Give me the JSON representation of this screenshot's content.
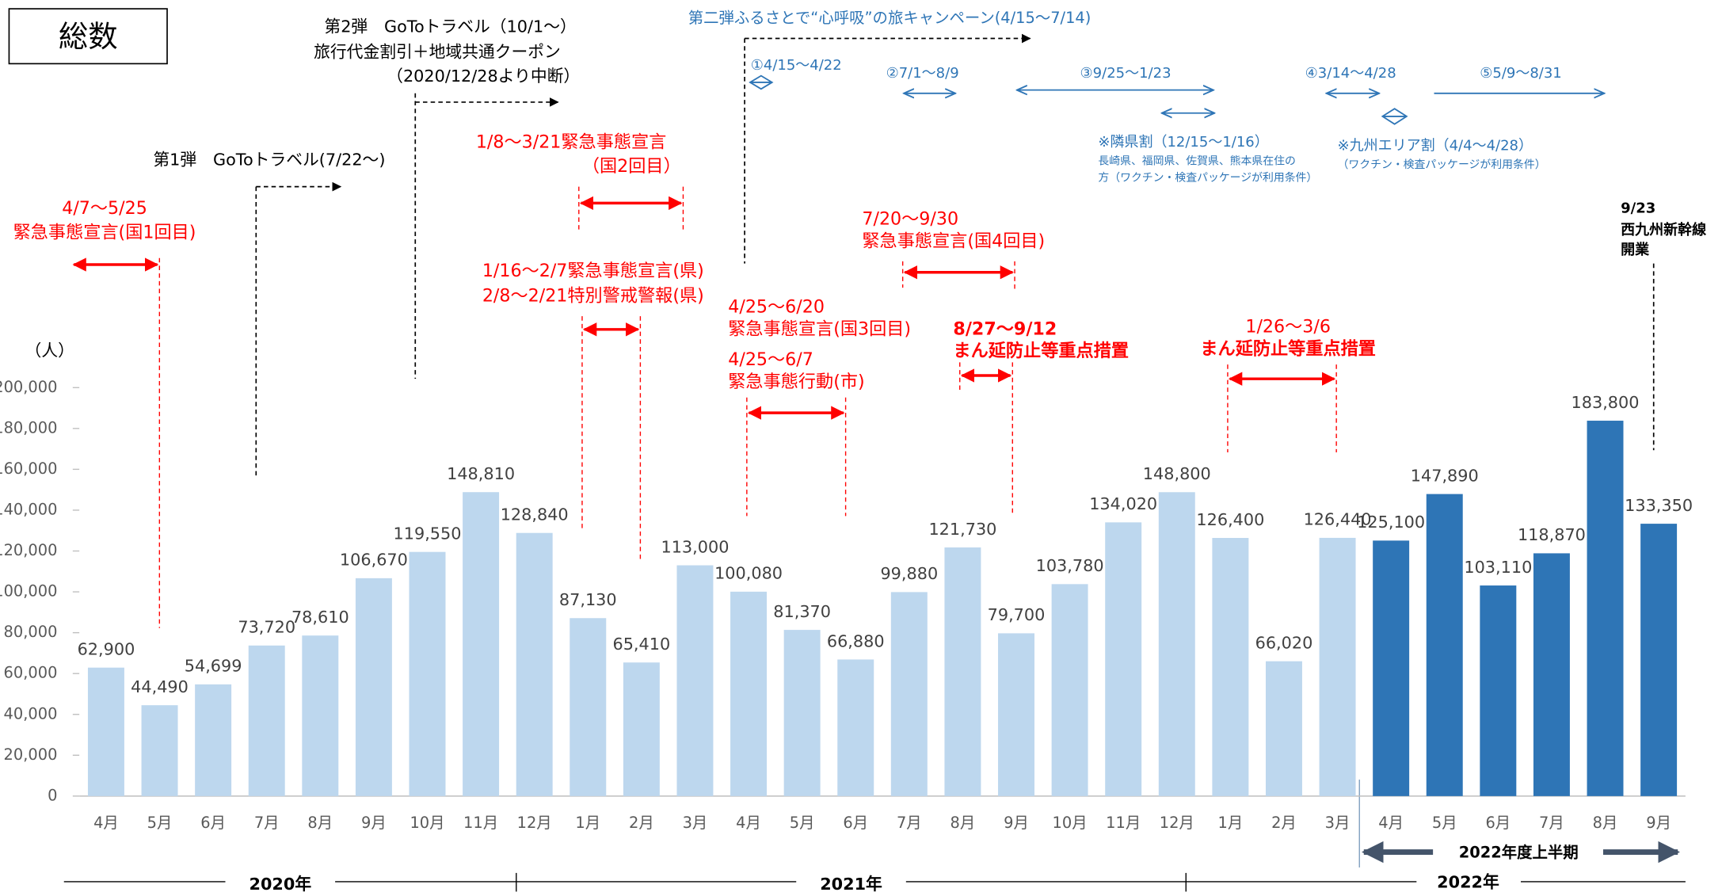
{
  "title": "総数",
  "chart_data": {
    "type": "bar",
    "y_label": "（人）",
    "categories": [
      "4月",
      "5月",
      "6月",
      "7月",
      "8月",
      "9月",
      "10月",
      "11月",
      "12月",
      "1月",
      "2月",
      "3月",
      "4月",
      "5月",
      "6月",
      "7月",
      "8月",
      "9月",
      "10月",
      "11月",
      "12月",
      "1月",
      "2月",
      "3月",
      "4月",
      "5月",
      "6月",
      "7月",
      "8月",
      "9月"
    ],
    "values": [
      62900,
      44490,
      54699,
      73720,
      78610,
      106670,
      119550,
      148810,
      128840,
      87130,
      65410,
      113000,
      100080,
      81370,
      66880,
      99880,
      121730,
      79700,
      103780,
      134020,
      148800,
      126400,
      66020,
      126440,
      125100,
      147890,
      103110,
      118870,
      183800,
      133350
    ],
    "value_labels": [
      "62,900",
      "44,490",
      "54,699",
      "73,720",
      "78,610",
      "106,670",
      "119,550",
      "148,810",
      "128,840",
      "87,130",
      "65,410",
      "113,000",
      "100,080",
      "81,370",
      "66,880",
      "99,880",
      "121,730",
      "79,700",
      "103,780",
      "134,020",
      "148,800",
      "126,400",
      "66,020",
      "126,440",
      "125,100",
      "147,890",
      "103,110",
      "118,870",
      "183,800",
      "133,350"
    ],
    "colors": [
      "#bdd7ee",
      "#bdd7ee",
      "#bdd7ee",
      "#bdd7ee",
      "#bdd7ee",
      "#bdd7ee",
      "#bdd7ee",
      "#bdd7ee",
      "#bdd7ee",
      "#bdd7ee",
      "#bdd7ee",
      "#bdd7ee",
      "#bdd7ee",
      "#bdd7ee",
      "#bdd7ee",
      "#bdd7ee",
      "#bdd7ee",
      "#bdd7ee",
      "#bdd7ee",
      "#bdd7ee",
      "#bdd7ee",
      "#bdd7ee",
      "#bdd7ee",
      "#bdd7ee",
      "#2e75b6",
      "#2e75b6",
      "#2e75b6",
      "#2e75b6",
      "#2e75b6",
      "#2e75b6"
    ],
    "ylim": [
      0,
      200000
    ],
    "yticks": [
      0,
      {
        "value": 20000,
        "label": "20,000"
      },
      {
        "value": 40000,
        "label": "40,000"
      },
      {
        "value": 60000,
        "label": "60,000"
      },
      {
        "value": 80000,
        "label": "80,000"
      },
      {
        "value": 100000,
        "label": "100,000"
      },
      {
        "value": 120000,
        "label": "120,000"
      },
      {
        "value": 140000,
        "label": "140,000"
      },
      {
        "value": 160000,
        "label": "160,000"
      },
      {
        "value": 180000,
        "label": "180,000"
      },
      {
        "value": 200000,
        "label": "200,000"
      }
    ],
    "years": [
      "2020年",
      "2021年",
      "2022年"
    ],
    "period_label": "2022年度上半期",
    "annotations": [
      {
        "text": "4/7～5/25",
        "color": "#ff0000"
      },
      {
        "text": "緊急事態宣言(国1回目)",
        "color": "#ff0000"
      },
      {
        "text": "1/8～3/21緊急事態宣言",
        "color": "#ff0000"
      },
      {
        "text": "（国2回目）",
        "color": "#ff0000"
      },
      {
        "text": "1/16～2/7緊急事態宣言(県)",
        "color": "#ff0000"
      },
      {
        "text": "2/8～2/21特別警戒警報(県)",
        "color": "#ff0000"
      },
      {
        "text": "4/25～6/20",
        "color": "#ff0000"
      },
      {
        "text": "緊急事態宣言(国3回目)",
        "color": "#ff0000"
      },
      {
        "text": "4/25～6/7",
        "color": "#ff0000"
      },
      {
        "text": "緊急事態行動(市)",
        "color": "#ff0000"
      },
      {
        "text": "7/20～9/30",
        "color": "#ff0000"
      },
      {
        "text": "緊急事態宣言(国4回目)",
        "color": "#ff0000"
      },
      {
        "text": "8/27～9/12",
        "color": "#ff0000"
      },
      {
        "text": "まん延防止等重点措置",
        "color": "#ff0000"
      },
      {
        "text": "1/26～3/6",
        "color": "#ff0000"
      },
      {
        "text": "まん延防止等重点措置",
        "color": "#ff0000"
      },
      {
        "text": "第1弾　GoToトラベル(7/22～)",
        "color": "#000000"
      },
      {
        "text": "第2弾　GoToトラベル（10/1～）",
        "color": "#000000"
      },
      {
        "text": "旅行代金割引＋地域共通クーポン",
        "color": "#000000"
      },
      {
        "text": "（2020/12/28より中断）",
        "color": "#000000"
      },
      {
        "text": "9/23",
        "color": "#000000"
      },
      {
        "text": "西九州新幹線",
        "color": "#000000"
      },
      {
        "text": "開業",
        "color": "#000000"
      },
      {
        "text": "第二弾ふるさとで“心呼吸”の旅キャンペーン(4/15～7/14)",
        "color": "#2e75b6"
      },
      {
        "text": "①4/15～4/22",
        "color": "#2e75b6"
      },
      {
        "text": "②7/1～8/9",
        "color": "#2e75b6"
      },
      {
        "text": "③9/25～1/23",
        "color": "#2e75b6"
      },
      {
        "text": "※隣県割（12/15～1/16）",
        "color": "#2e75b6"
      },
      {
        "text": "長崎県、福岡県、佐賀県、熊本県在住の",
        "color": "#2e75b6"
      },
      {
        "text": "方（ワクチン・検査パッケージが利用条件）",
        "color": "#2e75b6"
      },
      {
        "text": "④3/14～4/28",
        "color": "#2e75b6"
      },
      {
        "text": "⑤5/9～8/31",
        "color": "#2e75b6"
      },
      {
        "text": "※九州エリア割（4/4～4/28）",
        "color": "#2e75b6"
      },
      {
        "text": "（ワクチン・検査パッケージが利用条件）",
        "color": "#2e75b6"
      }
    ]
  }
}
